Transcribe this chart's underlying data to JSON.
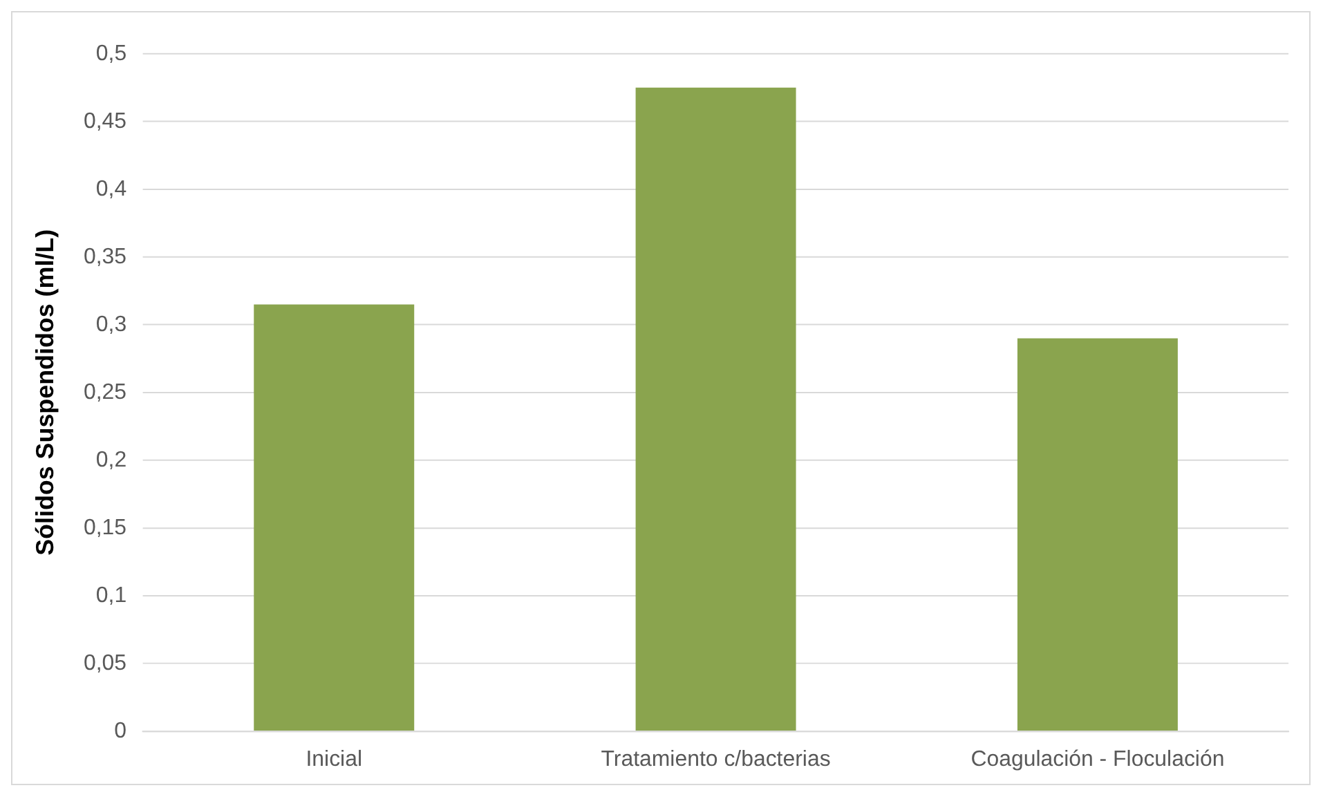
{
  "chart_data": {
    "type": "bar",
    "ylabel": "Sólidos Suspendidos (ml/L)",
    "categories": [
      "Inicial",
      "Tratamiento c/bacterias",
      "Coagulación - Floculación"
    ],
    "values": [
      0.315,
      0.475,
      0.29
    ],
    "color": "#8aa44e",
    "ylim": [
      0,
      0.5
    ],
    "yticks": [
      {
        "value": 0,
        "label": "0"
      },
      {
        "value": 0.05,
        "label": "0,05"
      },
      {
        "value": 0.1,
        "label": "0,1"
      },
      {
        "value": 0.15,
        "label": "0,15"
      },
      {
        "value": 0.2,
        "label": "0,2"
      },
      {
        "value": 0.25,
        "label": "0,25"
      },
      {
        "value": 0.3,
        "label": "0,3"
      },
      {
        "value": 0.35,
        "label": "0,35"
      },
      {
        "value": 0.4,
        "label": "0,4"
      },
      {
        "value": 0.45,
        "label": "0,45"
      },
      {
        "value": 0.5,
        "label": "0,5"
      }
    ],
    "grid": "y",
    "legend": false
  }
}
